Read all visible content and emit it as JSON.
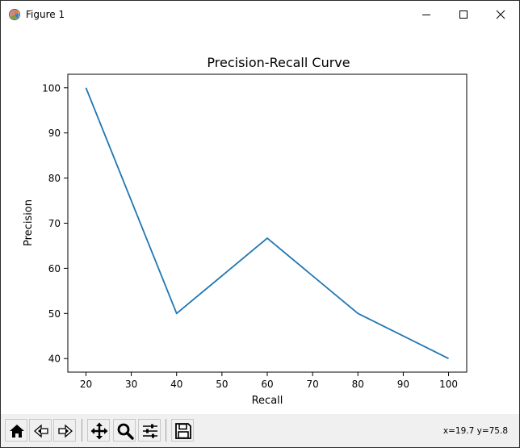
{
  "window": {
    "title": "Figure 1",
    "icons": {
      "app": "matplotlib-figure-icon",
      "minimize": "minimize-icon",
      "maximize": "maximize-icon",
      "close": "close-icon"
    }
  },
  "toolbar": {
    "tools": [
      {
        "name": "home",
        "icon": "home-icon"
      },
      {
        "name": "back",
        "icon": "back-arrow-icon"
      },
      {
        "name": "forward",
        "icon": "forward-arrow-icon"
      },
      {
        "name": "pan",
        "icon": "move-icon"
      },
      {
        "name": "zoom",
        "icon": "magnifier-icon"
      },
      {
        "name": "configure",
        "icon": "sliders-icon"
      },
      {
        "name": "save",
        "icon": "floppy-disk-icon"
      }
    ],
    "coords": "x=19.7 y=75.8"
  },
  "chart_data": {
    "type": "line",
    "title": "Precision-Recall Curve",
    "xlabel": "Recall",
    "ylabel": "Precision",
    "x": [
      20,
      40,
      60,
      80,
      100
    ],
    "series": [
      {
        "values": [
          100,
          50,
          66.67,
          50,
          40
        ],
        "color": "#1f77b4"
      }
    ],
    "xlim": [
      16,
      104
    ],
    "ylim": [
      37,
      103
    ],
    "xticks": [
      20,
      30,
      40,
      50,
      60,
      70,
      80,
      90,
      100
    ],
    "yticks": [
      40,
      50,
      60,
      70,
      80,
      90,
      100
    ],
    "grid": false
  }
}
